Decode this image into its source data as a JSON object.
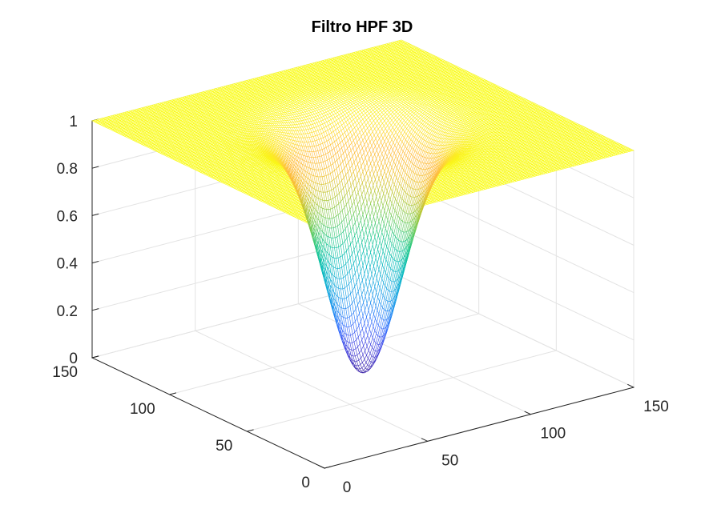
{
  "chart_data": {
    "type": "surface3d",
    "title": "Filtro HPF 3D",
    "function": "1 - exp(-((x - xc)^2 + (y - yc)^2) / (2 * sigma^2))",
    "x_range": [
      0,
      150
    ],
    "y_range": [
      0,
      150
    ],
    "z_range": [
      0,
      1
    ],
    "center": [
      75,
      75
    ],
    "sigma": 15,
    "min_value": 0,
    "max_value": 1,
    "grid_samples": 150,
    "x_ticks": [
      0,
      50,
      100,
      150
    ],
    "y_ticks": [
      0,
      50,
      100,
      150
    ],
    "z_ticks": [
      0,
      0.2,
      0.4,
      0.6,
      0.8,
      1
    ],
    "x_tick_labels": [
      "0",
      "50",
      "100",
      "150"
    ],
    "y_tick_labels": [
      "0",
      "50",
      "100",
      "150"
    ],
    "z_tick_labels": [
      "0",
      "0.2",
      "0.4",
      "0.6",
      "0.8",
      "1"
    ],
    "colormap": "parula",
    "colormap_stops": [
      "#3e26a8",
      "#4543e0",
      "#3870fe",
      "#1e92ef",
      "#18acdb",
      "#06bcb8",
      "#1fc88c",
      "#70cc5b",
      "#b9c735",
      "#f2c12e",
      "#ffb93a",
      "#fde32b",
      "#f9fb0e"
    ],
    "style": "mesh",
    "grid": true,
    "box": false,
    "xlabel": "",
    "ylabel": "",
    "zlabel": ""
  }
}
